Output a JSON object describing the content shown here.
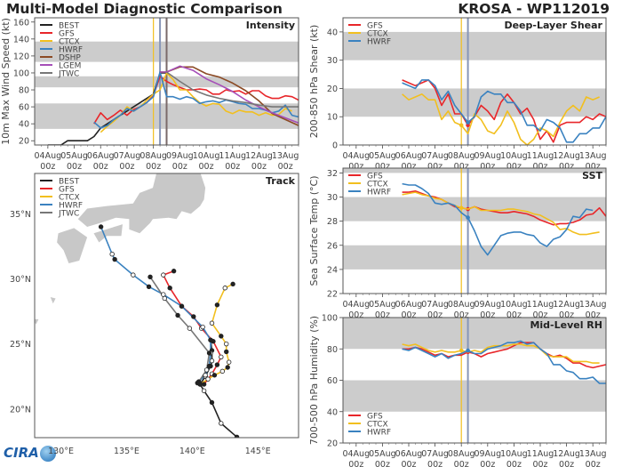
{
  "title": "Multi-Model Diagnostic Comparison",
  "storm": "KROSA - WP112019",
  "logo": "CIRA",
  "colors": {
    "BEST": "#222222",
    "GFS": "#e8262a",
    "CTCX": "#f2bf1e",
    "HWRF": "#3a82c0",
    "DSHP": "#8b4a24",
    "LGEM": "#a64fb8",
    "JTWC": "#777777",
    "band": "#cccccc",
    "analysis_line": "#8896b8"
  },
  "time_ticks": {
    "dates": [
      "04Aug",
      "05Aug",
      "06Aug",
      "07Aug",
      "08Aug",
      "09Aug",
      "10Aug",
      "11Aug",
      "12Aug",
      "13Aug"
    ],
    "hour": "00z"
  },
  "chart_data": [
    {
      "id": "intensity",
      "type": "line",
      "title": "Intensity",
      "ylabel": "10m Max Wind Speed (kt)",
      "ylim": [
        15,
        165
      ],
      "yticks": [
        20,
        40,
        60,
        80,
        100,
        120,
        140,
        160
      ],
      "bands": [
        [
          34,
          64
        ],
        [
          83,
          96
        ],
        [
          113,
          137
        ]
      ],
      "legend": "top-left",
      "vlines": [
        {
          "time": "08Aug00z",
          "color": "#f2bf1e"
        },
        {
          "time": "08Aug06z",
          "color": "#8896b8"
        },
        {
          "time": "08Aug12z",
          "color": "#7a6a6a"
        }
      ],
      "series": [
        {
          "name": "BEST",
          "start": "04Aug00z",
          "step_hours": 6,
          "values": [
            15,
            15,
            15,
            20,
            20,
            20,
            20,
            25,
            35,
            40,
            45,
            50,
            55,
            60,
            65,
            70,
            75,
            100,
            100
          ]
        },
        {
          "name": "GFS",
          "start": "05Aug18z",
          "step_hours": 6,
          "values": [
            40,
            53,
            45,
            50,
            56,
            50,
            57,
            60,
            65,
            73,
            96,
            90,
            86,
            83,
            80,
            80,
            81,
            80,
            75,
            75,
            80,
            78,
            79,
            75,
            79,
            79,
            73,
            70,
            70,
            73,
            72,
            68
          ]
        },
        {
          "name": "CTCX",
          "start": "06Aug00z",
          "step_hours": 6,
          "values": [
            30,
            37,
            43,
            50,
            60,
            55,
            60,
            68,
            75,
            80,
            100,
            92,
            80,
            80,
            72,
            65,
            61,
            64,
            63,
            55,
            52,
            56,
            54,
            54,
            50,
            53,
            50,
            51,
            58,
            55
          ]
        },
        {
          "name": "HWRF",
          "start": "05Aug18z",
          "step_hours": 6,
          "values": [
            42,
            35,
            38,
            45,
            50,
            58,
            55,
            60,
            65,
            72,
            101,
            72,
            72,
            69,
            72,
            70,
            64,
            66,
            67,
            65,
            68,
            66,
            64,
            63,
            58,
            58,
            56,
            53,
            55,
            62,
            50,
            48
          ]
        },
        {
          "name": "DSHP",
          "points": [
            [
              "08Aug06z",
              101
            ],
            [
              "08Aug12z",
              101
            ],
            [
              "09Aug00z",
              107
            ],
            [
              "09Aug12z",
              107
            ],
            [
              "10Aug00z",
              99
            ],
            [
              "10Aug12z",
              95
            ],
            [
              "11Aug00z",
              88
            ],
            [
              "11Aug12z",
              79
            ],
            [
              "12Aug00z",
              67
            ],
            [
              "12Aug12z",
              52
            ],
            [
              "13Aug00z",
              45
            ],
            [
              "13Aug12z",
              38
            ]
          ]
        },
        {
          "name": "LGEM",
          "points": [
            [
              "08Aug06z",
              101
            ],
            [
              "08Aug12z",
              101
            ],
            [
              "09Aug00z",
              108
            ],
            [
              "09Aug12z",
              103
            ],
            [
              "10Aug00z",
              93
            ],
            [
              "10Aug12z",
              86
            ],
            [
              "11Aug00z",
              78
            ],
            [
              "11Aug12z",
              68
            ],
            [
              "12Aug00z",
              60
            ],
            [
              "12Aug12z",
              53
            ],
            [
              "13Aug00z",
              47
            ],
            [
              "13Aug12z",
              41
            ]
          ]
        },
        {
          "name": "JTWC",
          "points": [
            [
              "08Aug12z",
              101
            ],
            [
              "09Aug00z",
              90
            ],
            [
              "09Aug12z",
              80
            ],
            [
              "10Aug00z",
              74
            ],
            [
              "10Aug12z",
              70
            ],
            [
              "11Aug00z",
              67
            ],
            [
              "11Aug12z",
              65
            ],
            [
              "12Aug00z",
              62
            ],
            [
              "12Aug12z",
              60
            ],
            [
              "13Aug12z",
              60
            ]
          ]
        }
      ]
    },
    {
      "id": "shear",
      "type": "line",
      "title": "Deep-Layer Shear",
      "ylabel": "200-850 hPa Shear (kt)",
      "ylim": [
        0,
        45
      ],
      "yticks": [
        0,
        10,
        20,
        30,
        40
      ],
      "bands": [
        [
          10,
          20
        ],
        [
          30,
          40
        ]
      ],
      "legend": "top-left",
      "vlines": [
        {
          "time": "08Aug00z",
          "color": "#f2bf1e"
        },
        {
          "time": "08Aug06z",
          "color": "#8896b8"
        }
      ],
      "series": [
        {
          "name": "GFS",
          "start": "05Aug18z",
          "step_hours": 6,
          "values": [
            23,
            22,
            21,
            22,
            23,
            20,
            14,
            18,
            11,
            11,
            7,
            10,
            14,
            12,
            9,
            15,
            18,
            15,
            11,
            13,
            9,
            2,
            5,
            1,
            7,
            8,
            8,
            8,
            10,
            9,
            11,
            10
          ]
        },
        {
          "name": "CTCX",
          "start": "05Aug18z",
          "step_hours": 6,
          "values": [
            18,
            16,
            17,
            18,
            16,
            16,
            9,
            12,
            8,
            7,
            4,
            11,
            9,
            5,
            4,
            7,
            12,
            8,
            2,
            0,
            2,
            6,
            5,
            3,
            8,
            12,
            14,
            12,
            17,
            16,
            17
          ]
        },
        {
          "name": "HWRF",
          "start": "05Aug18z",
          "step_hours": 6,
          "values": [
            22,
            21,
            20,
            23,
            23,
            21,
            16,
            19,
            14,
            11,
            8,
            10,
            17,
            19,
            18,
            18,
            15,
            15,
            12,
            7,
            7,
            5,
            9,
            8,
            6,
            1,
            1,
            4,
            4,
            6,
            6,
            10
          ]
        }
      ]
    },
    {
      "id": "sst",
      "type": "line",
      "title": "SST",
      "ylabel": "Sea Surface Temp (°C)",
      "ylim": [
        22,
        32.4
      ],
      "yticks": [
        22,
        24,
        26,
        28,
        30,
        32
      ],
      "bands": [
        [
          24,
          26
        ],
        [
          28,
          30
        ],
        [
          32,
          33
        ]
      ],
      "legend": "top-left",
      "vlines": [
        {
          "time": "08Aug00z",
          "color": "#f2bf1e"
        },
        {
          "time": "08Aug06z",
          "color": "#8896b8"
        }
      ],
      "series": [
        {
          "name": "GFS",
          "start": "05Aug18z",
          "step_hours": 6,
          "values": [
            30.4,
            30.4,
            30.5,
            30.3,
            30.1,
            30.0,
            29.8,
            29.5,
            29.2,
            29.1,
            29.0,
            29.2,
            29.0,
            28.9,
            28.8,
            28.7,
            28.7,
            28.8,
            28.7,
            28.6,
            28.4,
            28.1,
            27.9,
            27.7,
            27.8,
            27.8,
            27.9,
            28.1,
            28.5,
            28.6,
            29.1,
            28.4
          ]
        },
        {
          "name": "CTCX",
          "start": "05Aug18z",
          "step_hours": 6,
          "values": [
            30.2,
            30.3,
            30.4,
            30.2,
            30.1,
            29.9,
            29.8,
            29.5,
            29.3,
            29.1,
            29.0,
            29.2,
            28.9,
            28.9,
            28.9,
            28.9,
            29.0,
            29.0,
            28.9,
            28.8,
            28.6,
            28.5,
            28.2,
            27.9,
            27.3,
            27.4,
            27.1,
            26.9,
            26.9,
            27.0,
            27.1
          ]
        },
        {
          "name": "HWRF",
          "start": "05Aug18z",
          "step_hours": 6,
          "values": [
            31.1,
            31.0,
            31.0,
            30.7,
            30.3,
            29.5,
            29.4,
            29.5,
            29.3,
            28.7,
            28.3,
            27.2,
            25.9,
            25.2,
            26.0,
            26.8,
            27.0,
            27.1,
            27.1,
            26.9,
            26.8,
            26.2,
            25.9,
            26.5,
            26.7,
            27.3,
            28.4,
            28.3,
            29.0,
            28.9
          ]
        }
      ]
    },
    {
      "id": "rh",
      "type": "line",
      "title": "Mid-Level RH",
      "ylabel": "700-500 hPa Humidity (%)",
      "ylim": [
        20,
        100
      ],
      "yticks": [
        20,
        40,
        60,
        80,
        100
      ],
      "bands": [
        [
          40,
          60
        ],
        [
          80,
          100
        ]
      ],
      "legend": "bottom-left",
      "vlines": [
        {
          "time": "08Aug00z",
          "color": "#f2bf1e"
        },
        {
          "time": "08Aug06z",
          "color": "#8896b8"
        }
      ],
      "series": [
        {
          "name": "GFS",
          "start": "05Aug18z",
          "step_hours": 6,
          "values": [
            80,
            80,
            81,
            80,
            78,
            76,
            77,
            75,
            76,
            76,
            78,
            77,
            75,
            77,
            78,
            79,
            80,
            82,
            84,
            84,
            84,
            80,
            77,
            75,
            76,
            74,
            71,
            71,
            69,
            68,
            69,
            70
          ]
        },
        {
          "name": "CTCX",
          "start": "05Aug18z",
          "step_hours": 6,
          "values": [
            83,
            82,
            83,
            81,
            79,
            78,
            79,
            78,
            78,
            79,
            78,
            79,
            78,
            81,
            82,
            82,
            82,
            83,
            83,
            82,
            82,
            80,
            76,
            75,
            75,
            75,
            72,
            72,
            72,
            71,
            71
          ]
        },
        {
          "name": "HWRF",
          "start": "05Aug18z",
          "step_hours": 6,
          "values": [
            80,
            79,
            81,
            79,
            77,
            75,
            77,
            74,
            76,
            77,
            79,
            77,
            77,
            80,
            81,
            82,
            84,
            84,
            85,
            83,
            84,
            80,
            77,
            70,
            70,
            66,
            65,
            61,
            61,
            62,
            58,
            58
          ]
        }
      ]
    },
    {
      "id": "track",
      "type": "scatter",
      "title": "Track",
      "legend": "top-left",
      "xlim": [
        128,
        148.1
      ],
      "ylim": [
        17.8,
        38.1
      ],
      "xticks": [
        130,
        135,
        140,
        145
      ],
      "xtick_labels": [
        "130°E",
        "135°E",
        "140°E",
        "145°E"
      ],
      "yticks": [
        20,
        25,
        30,
        35
      ],
      "ytick_labels": [
        "20°N",
        "25°N",
        "30°N",
        "35°N"
      ],
      "series": [
        {
          "name": "BEST",
          "points": [
            [
              143.4,
              17.85
            ],
            [
              142.2,
              18.9
            ],
            [
              141.5,
              20.5
            ],
            [
              140.9,
              21.4
            ],
            [
              140.6,
              21.9
            ],
            [
              141.0,
              22.5
            ],
            [
              141.4,
              23.3
            ],
            [
              141.5,
              23.7
            ],
            [
              141.5,
              24.5
            ],
            [
              141.4,
              25.3
            ]
          ]
        },
        {
          "name": "GFS",
          "points": [
            [
              140.9,
              21.9
            ],
            [
              141.5,
              22.7
            ],
            [
              141.9,
              23.4
            ],
            [
              142.2,
              24.0
            ],
            [
              141.6,
              25.2
            ],
            [
              140.7,
              26.2
            ],
            [
              140.1,
              27.1
            ],
            [
              139.2,
              27.9
            ],
            [
              138.3,
              29.3
            ],
            [
              137.8,
              30.3
            ],
            [
              138.6,
              30.6
            ]
          ]
        },
        {
          "name": "CTCX",
          "points": [
            [
              140.6,
              21.9
            ],
            [
              141.2,
              22.3
            ],
            [
              141.7,
              22.6
            ],
            [
              142.3,
              22.9
            ],
            [
              142.7,
              23.2
            ],
            [
              142.8,
              23.6
            ],
            [
              142.6,
              24.4
            ],
            [
              142.6,
              25.0
            ],
            [
              142.2,
              25.6
            ],
            [
              141.5,
              26.6
            ],
            [
              141.9,
              28.0
            ],
            [
              142.5,
              29.3
            ],
            [
              143.1,
              29.6
            ]
          ]
        },
        {
          "name": "HWRF",
          "points": [
            [
              140.4,
              22.0
            ],
            [
              141.0,
              22.6
            ],
            [
              141.3,
              23.3
            ],
            [
              141.4,
              24.3
            ],
            [
              141.4,
              25.3
            ],
            [
              140.8,
              26.3
            ],
            [
              139.2,
              27.9
            ],
            [
              137.8,
              28.8
            ],
            [
              136.7,
              29.4
            ],
            [
              135.5,
              30.3
            ],
            [
              134.1,
              31.5
            ],
            [
              133.9,
              31.9
            ],
            [
              133.05,
              34.0
            ]
          ]
        },
        {
          "name": "JTWC",
          "points": [
            [
              140.5,
              22.1
            ],
            [
              141.1,
              23.0
            ],
            [
              141.3,
              24.3
            ],
            [
              139.8,
              26.2
            ],
            [
              138.9,
              27.2
            ],
            [
              137.9,
              28.5
            ],
            [
              136.8,
              30.15
            ]
          ]
        }
      ]
    }
  ]
}
